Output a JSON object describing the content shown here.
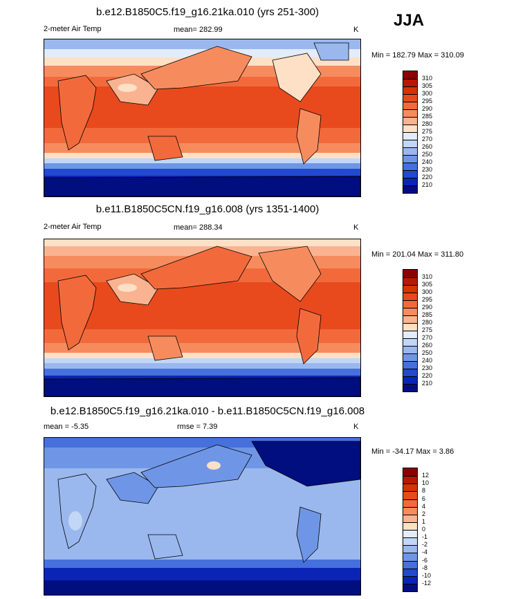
{
  "season": "JJA",
  "panels": [
    {
      "title": "b.e12.B1850C5.f19_g16.21ka.010 (yrs 251-300)",
      "left_label": "2-meter Air Temp",
      "center_label": "mean= 282.99",
      "units": "K",
      "minmax": "Min = 182.79 Max = 310.09",
      "colorbar": {
        "labels": [
          "310",
          "305",
          "300",
          "295",
          "290",
          "285",
          "280",
          "275",
          "270",
          "260",
          "250",
          "240",
          "230",
          "220",
          "210"
        ],
        "colors": [
          "#8b0000",
          "#b81800",
          "#d63300",
          "#e84a1d",
          "#f26a3c",
          "#f68c5e",
          "#f9b391",
          "#fde0c6",
          "#e2ecfa",
          "#c2d6f5",
          "#9ab8ee",
          "#6f96e6",
          "#4670dc",
          "#2249cf",
          "#0a25b6",
          "#000e80"
        ]
      }
    },
    {
      "title": "b.e11.B1850C5CN.f19_g16.008 (yrs 1351-1400)",
      "left_label": "2-meter Air Temp",
      "center_label": "mean= 288.34",
      "units": "K",
      "minmax": "Min = 201.04 Max = 311.80",
      "colorbar": {
        "labels": [
          "310",
          "305",
          "300",
          "295",
          "290",
          "285",
          "280",
          "275",
          "270",
          "260",
          "250",
          "240",
          "230",
          "220",
          "210"
        ],
        "colors": [
          "#8b0000",
          "#b81800",
          "#d63300",
          "#e84a1d",
          "#f26a3c",
          "#f68c5e",
          "#f9b391",
          "#fde0c6",
          "#e2ecfa",
          "#c2d6f5",
          "#9ab8ee",
          "#6f96e6",
          "#4670dc",
          "#2249cf",
          "#0a25b6",
          "#000e80"
        ]
      }
    },
    {
      "title": "b.e12.B1850C5.f19_g16.21ka.010 - b.e11.B1850C5CN.f19_g16.008",
      "left_label": "mean =  -5.35",
      "center_label": "rmse =   7.39",
      "units": "K",
      "minmax": "Min = -34.17 Max =   3.86",
      "colorbar": {
        "labels": [
          "12",
          "10",
          "8",
          "6",
          "4",
          "2",
          "1",
          "0",
          "-1",
          "-2",
          "-4",
          "-6",
          "-8",
          "-10",
          "-12"
        ],
        "colors": [
          "#8b0000",
          "#b81800",
          "#d63300",
          "#e84a1d",
          "#f26a3c",
          "#f68c5e",
          "#f9b391",
          "#fde0c6",
          "#e2ecfa",
          "#c2d6f5",
          "#9ab8ee",
          "#6f96e6",
          "#4670dc",
          "#2249cf",
          "#0a25b6",
          "#000e80"
        ]
      }
    }
  ]
}
